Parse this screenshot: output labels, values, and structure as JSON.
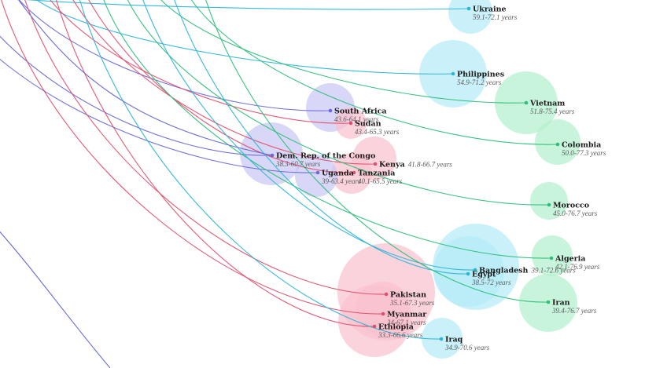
{
  "chart_data": {
    "type": "bubble-flow",
    "unit_suffix": "years",
    "groups": [
      {
        "group": "purple",
        "color": "#6a6ad6",
        "bubble_fill": "#c9c8f4"
      },
      {
        "group": "red",
        "color": "#e0506e",
        "bubble_fill": "#f9c2cf"
      },
      {
        "group": "cyan",
        "color": "#2bb5d9",
        "bubble_fill": "#b5ecf7"
      },
      {
        "group": "green",
        "color": "#2fbf7a",
        "bubble_fill": "#b3f0cf"
      }
    ],
    "countries": [
      {
        "name": "Ukraine",
        "range": "59.1-72.1",
        "group": "cyan",
        "size": 28
      },
      {
        "name": "Philippines",
        "range": "54.9-71.2",
        "group": "cyan",
        "size": 43
      },
      {
        "name": "Vietnam",
        "range": "51.8-75.4",
        "group": "green",
        "size": 40
      },
      {
        "name": "Colombia",
        "range": "50.0-77.3",
        "group": "green",
        "size": 29
      },
      {
        "name": "South Africa",
        "range": "43.6-64.1",
        "group": "purple",
        "size": 31
      },
      {
        "name": "Sudan",
        "range": "43.4-65.3",
        "group": "red",
        "size": 20
      },
      {
        "name": "Dem. Rep. of the Congo",
        "range": "38.3-60.7",
        "group": "purple",
        "size": 40
      },
      {
        "name": "Kenya",
        "range": "41.8-66.7",
        "group": "red",
        "size": 28
      },
      {
        "name": "Tanzania",
        "range": "40.1-65.5",
        "group": "red",
        "size": 26
      },
      {
        "name": "Uganda",
        "range": "39-63.4",
        "group": "purple",
        "size": 27
      },
      {
        "name": "Morocco",
        "range": "45.0-76.7",
        "group": "green",
        "size": 24
      },
      {
        "name": "Algeria",
        "range": "42.1-76.9",
        "group": "green",
        "size": 26
      },
      {
        "name": "Bangladesh",
        "range": "39.1-72.6",
        "group": "cyan",
        "size": 55
      },
      {
        "name": "Egypt",
        "range": "38.5-72",
        "group": "cyan",
        "size": 45
      },
      {
        "name": "Iran",
        "range": "39.4-76.7",
        "group": "green",
        "size": 37
      },
      {
        "name": "Pakistan",
        "range": "35.1-67.3",
        "group": "red",
        "size": 62
      },
      {
        "name": "Myanmar",
        "range": "34-67.1",
        "group": "red",
        "size": 35
      },
      {
        "name": "Ethiopia",
        "range": "33.3-66.6",
        "group": "red",
        "size": 46
      },
      {
        "name": "Iraq",
        "range": "34.9-70.6",
        "group": "cyan",
        "size": 26
      }
    ]
  }
}
